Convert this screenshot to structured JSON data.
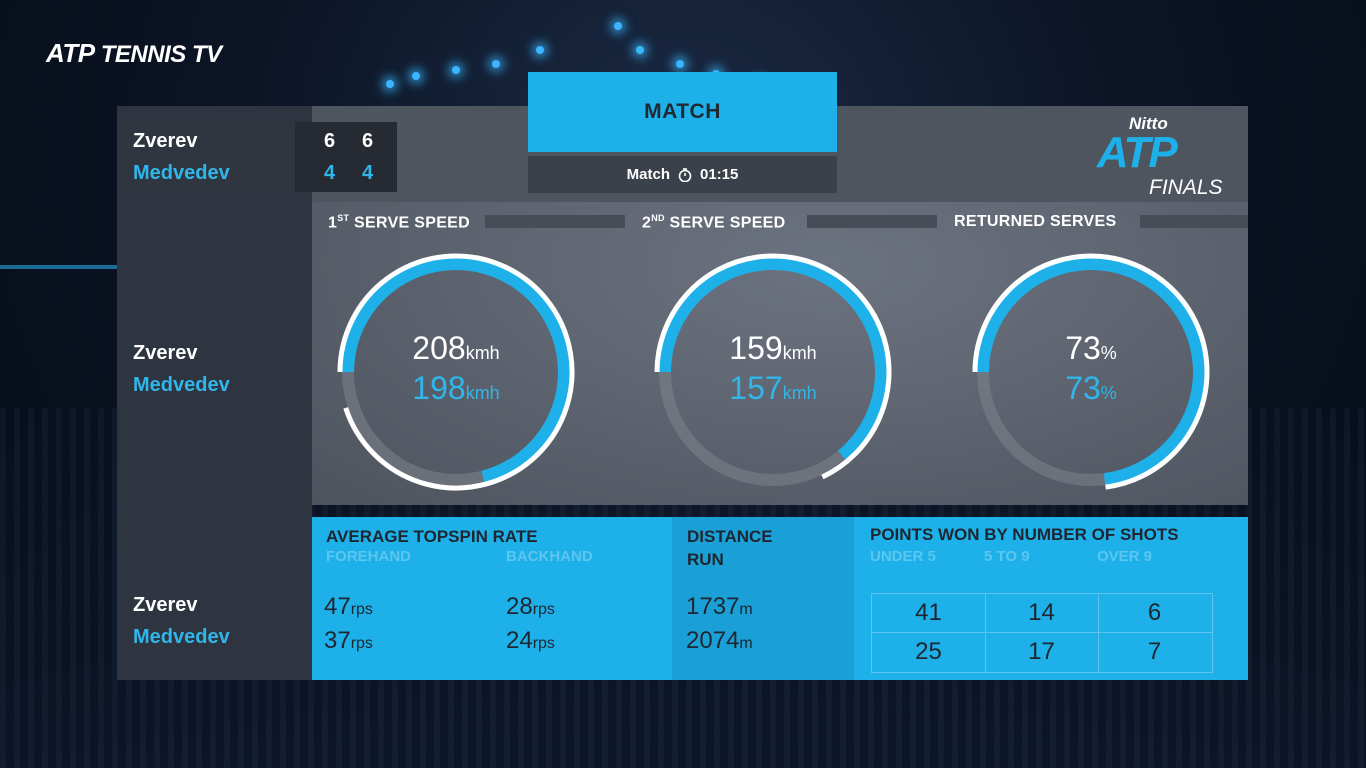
{
  "broadcaster": {
    "logo_atp": "ATP",
    "logo_text": "TENNIS TV"
  },
  "event_logo": {
    "nitto": "Nitto",
    "atp": "ATP",
    "finals": "FINALS"
  },
  "header": {
    "tab": "MATCH",
    "timer_label": "Match",
    "timer_value": "01:15"
  },
  "scoreboard": {
    "players": [
      {
        "name": "Zverev",
        "sets": [
          "6",
          "6"
        ]
      },
      {
        "name": "Medvedev",
        "sets": [
          "4",
          "4"
        ]
      }
    ]
  },
  "players": {
    "p1": "Zverev",
    "p2": "Medvedev"
  },
  "gauges": [
    {
      "title_main": "1",
      "title_sup": "ST",
      "title_rest": " SERVE SPEED",
      "p1_value": "208",
      "p2_value": "198",
      "unit": "kmh",
      "p1_fraction": 0.95,
      "p2_fraction": 0.71
    },
    {
      "title_main": "2",
      "title_sup": "ND",
      "title_rest": " SERVE SPEED",
      "p1_value": "159",
      "p2_value": "157",
      "unit": "kmh",
      "p1_fraction": 0.68,
      "p2_fraction": 0.64
    },
    {
      "title_main": "",
      "title_sup": "",
      "title_rest": "RETURNED SERVES",
      "p1_value": "73",
      "p2_value": "73",
      "unit": "%",
      "p1_fraction": 0.73,
      "p2_fraction": 0.73
    }
  ],
  "colors": {
    "accent": "#1eb0e8",
    "p2": "#2fb6ea",
    "track": "#7d838d"
  },
  "topspin": {
    "title": "AVERAGE TOPSPIN RATE",
    "forehand_label": "FOREHAND",
    "backhand_label": "BACKHAND",
    "unit": "rps",
    "p1_forehand": "47",
    "p1_backhand": "28",
    "p2_forehand": "37",
    "p2_backhand": "24"
  },
  "distance": {
    "title_line1": "DISTANCE",
    "title_line2": "RUN",
    "unit": "m",
    "p1": "1737",
    "p2": "2074"
  },
  "points_by_shots": {
    "title": "POINTS WON BY NUMBER OF SHOTS",
    "columns": [
      "UNDER 5",
      "5 TO 9",
      "OVER 9"
    ],
    "p1": [
      "41",
      "14",
      "6"
    ],
    "p2": [
      "25",
      "17",
      "7"
    ]
  }
}
